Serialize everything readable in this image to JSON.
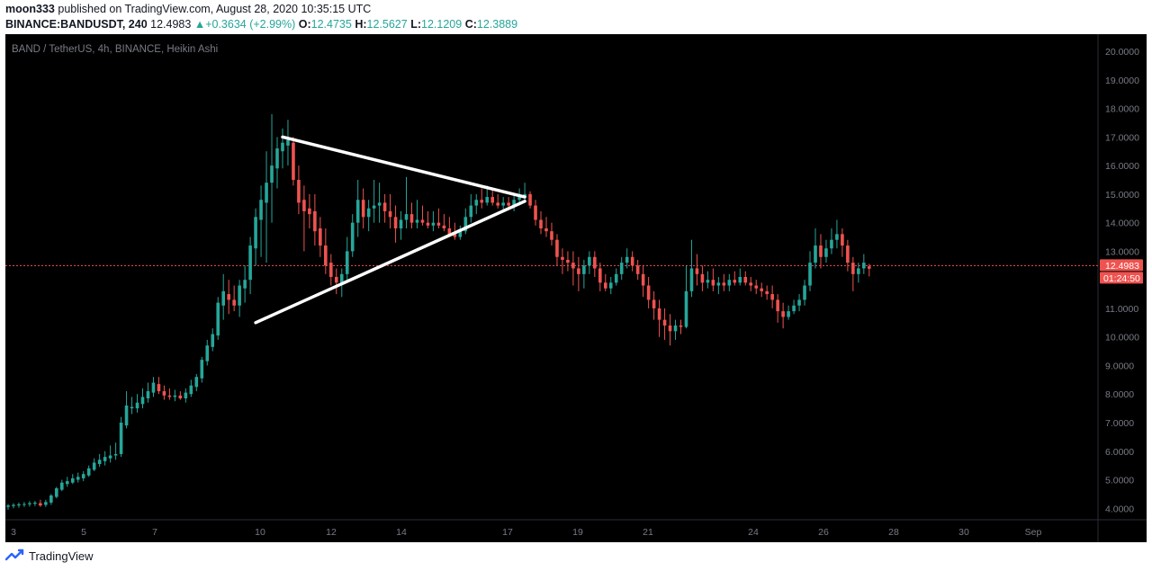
{
  "header": {
    "author": "moon333",
    "published_text": "published on TradingView.com, August 28, 2020 10:35:15 UTC",
    "symbol": "BINANCE:BANDUSDT, 240",
    "last_price": "12.4983",
    "change_arrow": "▲",
    "change": "+0.3634 (+2.99%)",
    "o_label": "O:",
    "o_value": "12.4735",
    "h_label": "H:",
    "h_value": "12.5627",
    "l_label": "L:",
    "l_value": "12.1209",
    "c_label": "C:",
    "c_value": "12.3889"
  },
  "footer": {
    "brand": "TradingView",
    "logo_icon": "tradingview-logo-icon"
  },
  "colors": {
    "background": "#000000",
    "up": "#26a69a",
    "down": "#ef5350",
    "price_line": "#ef5350",
    "pattern_lines": "#ffffff",
    "axis_text": "#787b86"
  },
  "chart_data": {
    "type": "candlestick",
    "chart_style": "Heikin Ashi",
    "title": "BAND / TetherUS, 4h, BINANCE, Heikin Ashi",
    "xlabel": "",
    "ylabel": "",
    "ylim": [
      3.6,
      20.6
    ],
    "grid": false,
    "y_ticks": [
      "4.0000",
      "5.0000",
      "6.0000",
      "7.0000",
      "8.0000",
      "9.0000",
      "10.0000",
      "11.0000",
      "12.0000",
      "13.0000",
      "14.0000",
      "15.0000",
      "16.0000",
      "17.0000",
      "18.0000",
      "19.0000",
      "20.0000"
    ],
    "x_ticks": [
      "3",
      "5",
      "7",
      "10",
      "12",
      "14",
      "17",
      "19",
      "21",
      "24",
      "26",
      "28",
      "30",
      "Sep"
    ],
    "last_price_label": "12.4983",
    "countdown_label": "01:24:50",
    "candles": [
      {
        "o": 4.05,
        "h": 4.15,
        "l": 3.95,
        "c": 4.1
      },
      {
        "o": 4.08,
        "h": 4.18,
        "l": 4.0,
        "c": 4.12
      },
      {
        "o": 4.1,
        "h": 4.2,
        "l": 4.02,
        "c": 4.14
      },
      {
        "o": 4.12,
        "h": 4.22,
        "l": 4.05,
        "c": 4.15
      },
      {
        "o": 4.14,
        "h": 4.25,
        "l": 4.06,
        "c": 4.18
      },
      {
        "o": 4.16,
        "h": 4.26,
        "l": 4.08,
        "c": 4.2
      },
      {
        "o": 4.18,
        "h": 4.3,
        "l": 4.05,
        "c": 4.1
      },
      {
        "o": 4.12,
        "h": 4.3,
        "l": 4.05,
        "c": 4.22
      },
      {
        "o": 4.2,
        "h": 4.5,
        "l": 4.12,
        "c": 4.45
      },
      {
        "o": 4.4,
        "h": 4.75,
        "l": 4.35,
        "c": 4.7
      },
      {
        "o": 4.65,
        "h": 5.0,
        "l": 4.6,
        "c": 4.9
      },
      {
        "o": 4.85,
        "h": 5.1,
        "l": 4.75,
        "c": 4.95
      },
      {
        "o": 4.9,
        "h": 5.2,
        "l": 4.85,
        "c": 5.05
      },
      {
        "o": 5.0,
        "h": 5.25,
        "l": 4.9,
        "c": 5.1
      },
      {
        "o": 5.05,
        "h": 5.3,
        "l": 4.95,
        "c": 5.2
      },
      {
        "o": 5.15,
        "h": 5.5,
        "l": 5.1,
        "c": 5.4
      },
      {
        "o": 5.35,
        "h": 5.75,
        "l": 5.3,
        "c": 5.6
      },
      {
        "o": 5.55,
        "h": 5.9,
        "l": 5.45,
        "c": 5.7
      },
      {
        "o": 5.65,
        "h": 6.0,
        "l": 5.5,
        "c": 5.8
      },
      {
        "o": 5.75,
        "h": 6.2,
        "l": 5.6,
        "c": 5.85
      },
      {
        "o": 5.85,
        "h": 6.3,
        "l": 5.7,
        "c": 5.9
      },
      {
        "o": 5.9,
        "h": 7.2,
        "l": 5.8,
        "c": 7.0
      },
      {
        "o": 6.9,
        "h": 8.1,
        "l": 6.8,
        "c": 7.6
      },
      {
        "o": 7.5,
        "h": 7.9,
        "l": 7.3,
        "c": 7.55
      },
      {
        "o": 7.5,
        "h": 8.0,
        "l": 7.35,
        "c": 7.7
      },
      {
        "o": 7.65,
        "h": 8.2,
        "l": 7.5,
        "c": 7.9
      },
      {
        "o": 7.85,
        "h": 8.4,
        "l": 7.7,
        "c": 8.1
      },
      {
        "o": 8.05,
        "h": 8.6,
        "l": 7.9,
        "c": 8.4
      },
      {
        "o": 8.35,
        "h": 8.6,
        "l": 8.0,
        "c": 8.1
      },
      {
        "o": 8.1,
        "h": 8.3,
        "l": 7.8,
        "c": 7.95
      },
      {
        "o": 7.95,
        "h": 8.2,
        "l": 7.8,
        "c": 7.9
      },
      {
        "o": 7.9,
        "h": 8.15,
        "l": 7.75,
        "c": 7.95
      },
      {
        "o": 7.95,
        "h": 8.1,
        "l": 7.8,
        "c": 7.85
      },
      {
        "o": 7.85,
        "h": 8.2,
        "l": 7.7,
        "c": 8.05
      },
      {
        "o": 8.0,
        "h": 8.5,
        "l": 7.9,
        "c": 8.3
      },
      {
        "o": 8.25,
        "h": 8.7,
        "l": 8.1,
        "c": 8.6
      },
      {
        "o": 8.55,
        "h": 9.3,
        "l": 8.4,
        "c": 9.2
      },
      {
        "o": 9.15,
        "h": 9.9,
        "l": 9.0,
        "c": 9.7
      },
      {
        "o": 9.65,
        "h": 10.3,
        "l": 9.5,
        "c": 10.1
      },
      {
        "o": 10.05,
        "h": 11.4,
        "l": 9.9,
        "c": 11.2
      },
      {
        "o": 11.1,
        "h": 12.2,
        "l": 10.6,
        "c": 11.6
      },
      {
        "o": 11.5,
        "h": 12.0,
        "l": 10.8,
        "c": 11.3
      },
      {
        "o": 11.3,
        "h": 11.8,
        "l": 10.9,
        "c": 11.1
      },
      {
        "o": 11.1,
        "h": 12.0,
        "l": 10.7,
        "c": 11.8
      },
      {
        "o": 11.7,
        "h": 12.5,
        "l": 11.2,
        "c": 12.0
      },
      {
        "o": 12.0,
        "h": 13.5,
        "l": 11.5,
        "c": 13.2
      },
      {
        "o": 13.1,
        "h": 14.5,
        "l": 12.5,
        "c": 14.2
      },
      {
        "o": 14.1,
        "h": 15.3,
        "l": 12.8,
        "c": 14.8
      },
      {
        "o": 14.7,
        "h": 16.5,
        "l": 12.6,
        "c": 15.4
      },
      {
        "o": 15.4,
        "h": 17.8,
        "l": 14.0,
        "c": 16.0
      },
      {
        "o": 15.9,
        "h": 17.0,
        "l": 15.2,
        "c": 16.6
      },
      {
        "o": 16.5,
        "h": 17.3,
        "l": 15.9,
        "c": 16.8
      },
      {
        "o": 16.7,
        "h": 17.6,
        "l": 16.0,
        "c": 16.9
      },
      {
        "o": 16.8,
        "h": 17.0,
        "l": 15.3,
        "c": 15.5
      },
      {
        "o": 15.5,
        "h": 16.0,
        "l": 14.3,
        "c": 14.7
      },
      {
        "o": 14.8,
        "h": 15.3,
        "l": 13.0,
        "c": 14.4
      },
      {
        "o": 14.5,
        "h": 15.0,
        "l": 13.8,
        "c": 14.3
      },
      {
        "o": 14.4,
        "h": 15.0,
        "l": 13.2,
        "c": 13.7
      },
      {
        "o": 13.8,
        "h": 14.2,
        "l": 12.8,
        "c": 13.2
      },
      {
        "o": 13.2,
        "h": 13.8,
        "l": 12.2,
        "c": 12.5
      },
      {
        "o": 12.6,
        "h": 12.9,
        "l": 11.8,
        "c": 12.1
      },
      {
        "o": 12.1,
        "h": 12.4,
        "l": 11.5,
        "c": 11.9
      },
      {
        "o": 11.9,
        "h": 12.4,
        "l": 11.4,
        "c": 12.2
      },
      {
        "o": 12.2,
        "h": 13.5,
        "l": 12.0,
        "c": 13.0
      },
      {
        "o": 13.0,
        "h": 14.3,
        "l": 12.8,
        "c": 14.0
      },
      {
        "o": 14.0,
        "h": 15.5,
        "l": 13.5,
        "c": 14.8
      },
      {
        "o": 14.8,
        "h": 15.2,
        "l": 13.8,
        "c": 14.2
      },
      {
        "o": 14.2,
        "h": 14.8,
        "l": 13.7,
        "c": 14.5
      },
      {
        "o": 14.5,
        "h": 15.5,
        "l": 14.0,
        "c": 14.6
      },
      {
        "o": 14.6,
        "h": 15.4,
        "l": 14.0,
        "c": 14.7
      },
      {
        "o": 14.7,
        "h": 15.0,
        "l": 14.0,
        "c": 14.4
      },
      {
        "o": 14.4,
        "h": 15.0,
        "l": 13.8,
        "c": 14.2
      },
      {
        "o": 14.2,
        "h": 14.6,
        "l": 13.3,
        "c": 13.8
      },
      {
        "o": 13.8,
        "h": 14.4,
        "l": 13.4,
        "c": 14.1
      },
      {
        "o": 14.1,
        "h": 15.6,
        "l": 13.8,
        "c": 14.3
      },
      {
        "o": 14.3,
        "h": 14.7,
        "l": 13.8,
        "c": 14.0
      },
      {
        "o": 14.0,
        "h": 14.8,
        "l": 13.8,
        "c": 14.1
      },
      {
        "o": 14.1,
        "h": 14.6,
        "l": 13.9,
        "c": 14.0
      },
      {
        "o": 14.0,
        "h": 14.4,
        "l": 13.8,
        "c": 13.9
      },
      {
        "o": 13.9,
        "h": 14.4,
        "l": 13.7,
        "c": 14.0
      },
      {
        "o": 14.0,
        "h": 14.5,
        "l": 13.8,
        "c": 13.9
      },
      {
        "o": 13.9,
        "h": 14.3,
        "l": 13.7,
        "c": 13.8
      },
      {
        "o": 13.8,
        "h": 14.2,
        "l": 13.5,
        "c": 13.6
      },
      {
        "o": 13.6,
        "h": 14.0,
        "l": 13.4,
        "c": 13.5
      },
      {
        "o": 13.5,
        "h": 13.9,
        "l": 13.4,
        "c": 13.7
      },
      {
        "o": 13.7,
        "h": 14.5,
        "l": 13.6,
        "c": 14.2
      },
      {
        "o": 14.2,
        "h": 15.0,
        "l": 14.0,
        "c": 14.6
      },
      {
        "o": 14.6,
        "h": 15.0,
        "l": 14.3,
        "c": 14.8
      },
      {
        "o": 14.8,
        "h": 15.2,
        "l": 14.5,
        "c": 14.7
      },
      {
        "o": 14.7,
        "h": 15.3,
        "l": 14.6,
        "c": 14.9
      },
      {
        "o": 14.9,
        "h": 15.2,
        "l": 14.6,
        "c": 14.7
      },
      {
        "o": 14.7,
        "h": 15.0,
        "l": 14.5,
        "c": 14.6
      },
      {
        "o": 14.6,
        "h": 14.9,
        "l": 14.4,
        "c": 14.7
      },
      {
        "o": 14.7,
        "h": 14.9,
        "l": 14.5,
        "c": 14.6
      },
      {
        "o": 14.6,
        "h": 15.0,
        "l": 14.4,
        "c": 14.8
      },
      {
        "o": 14.8,
        "h": 15.2,
        "l": 14.6,
        "c": 14.9
      },
      {
        "o": 14.9,
        "h": 15.4,
        "l": 14.7,
        "c": 15.0
      },
      {
        "o": 15.0,
        "h": 15.1,
        "l": 14.5,
        "c": 14.6
      },
      {
        "o": 14.6,
        "h": 14.8,
        "l": 13.9,
        "c": 14.1
      },
      {
        "o": 14.1,
        "h": 14.4,
        "l": 13.6,
        "c": 13.8
      },
      {
        "o": 13.8,
        "h": 14.2,
        "l": 13.5,
        "c": 13.7
      },
      {
        "o": 13.7,
        "h": 14.0,
        "l": 13.2,
        "c": 13.4
      },
      {
        "o": 13.4,
        "h": 13.6,
        "l": 12.5,
        "c": 12.8
      },
      {
        "o": 12.8,
        "h": 13.1,
        "l": 12.2,
        "c": 12.7
      },
      {
        "o": 12.7,
        "h": 13.0,
        "l": 12.3,
        "c": 12.6
      },
      {
        "o": 12.6,
        "h": 13.0,
        "l": 11.8,
        "c": 12.4
      },
      {
        "o": 12.4,
        "h": 12.8,
        "l": 11.6,
        "c": 12.2
      },
      {
        "o": 12.2,
        "h": 12.7,
        "l": 11.7,
        "c": 12.5
      },
      {
        "o": 12.5,
        "h": 13.0,
        "l": 12.2,
        "c": 12.8
      },
      {
        "o": 12.8,
        "h": 13.0,
        "l": 12.1,
        "c": 12.4
      },
      {
        "o": 12.4,
        "h": 12.6,
        "l": 11.6,
        "c": 11.9
      },
      {
        "o": 11.9,
        "h": 12.2,
        "l": 11.6,
        "c": 11.7
      },
      {
        "o": 11.7,
        "h": 12.1,
        "l": 11.5,
        "c": 11.9
      },
      {
        "o": 11.9,
        "h": 12.4,
        "l": 11.8,
        "c": 12.2
      },
      {
        "o": 12.2,
        "h": 12.8,
        "l": 12.0,
        "c": 12.6
      },
      {
        "o": 12.6,
        "h": 13.1,
        "l": 12.4,
        "c": 12.8
      },
      {
        "o": 12.8,
        "h": 13.0,
        "l": 12.3,
        "c": 12.5
      },
      {
        "o": 12.5,
        "h": 12.7,
        "l": 12.0,
        "c": 12.2
      },
      {
        "o": 12.2,
        "h": 12.5,
        "l": 11.4,
        "c": 11.8
      },
      {
        "o": 11.8,
        "h": 12.1,
        "l": 11.0,
        "c": 11.3
      },
      {
        "o": 11.3,
        "h": 11.6,
        "l": 10.6,
        "c": 11.0
      },
      {
        "o": 11.0,
        "h": 11.3,
        "l": 10.0,
        "c": 10.6
      },
      {
        "o": 10.6,
        "h": 11.0,
        "l": 9.9,
        "c": 10.4
      },
      {
        "o": 10.4,
        "h": 10.8,
        "l": 9.7,
        "c": 10.2
      },
      {
        "o": 10.2,
        "h": 10.6,
        "l": 9.9,
        "c": 10.4
      },
      {
        "o": 10.4,
        "h": 10.6,
        "l": 10.1,
        "c": 10.35
      },
      {
        "o": 10.35,
        "h": 12.5,
        "l": 10.3,
        "c": 11.6
      },
      {
        "o": 11.6,
        "h": 13.4,
        "l": 11.4,
        "c": 12.4
      },
      {
        "o": 12.4,
        "h": 12.9,
        "l": 11.8,
        "c": 12.2
      },
      {
        "o": 12.2,
        "h": 12.5,
        "l": 11.6,
        "c": 11.9
      },
      {
        "o": 11.9,
        "h": 12.3,
        "l": 11.7,
        "c": 12.0
      },
      {
        "o": 12.0,
        "h": 12.4,
        "l": 11.6,
        "c": 11.8
      },
      {
        "o": 11.8,
        "h": 12.1,
        "l": 11.5,
        "c": 11.9
      },
      {
        "o": 11.9,
        "h": 12.2,
        "l": 11.6,
        "c": 11.8
      },
      {
        "o": 11.8,
        "h": 12.2,
        "l": 11.6,
        "c": 12.0
      },
      {
        "o": 12.0,
        "h": 12.3,
        "l": 11.8,
        "c": 11.9
      },
      {
        "o": 11.9,
        "h": 12.4,
        "l": 11.8,
        "c": 12.1
      },
      {
        "o": 12.1,
        "h": 12.3,
        "l": 11.8,
        "c": 11.9
      },
      {
        "o": 11.9,
        "h": 12.1,
        "l": 11.6,
        "c": 11.8
      },
      {
        "o": 11.8,
        "h": 12.0,
        "l": 11.5,
        "c": 11.7
      },
      {
        "o": 11.7,
        "h": 11.9,
        "l": 11.4,
        "c": 11.6
      },
      {
        "o": 11.6,
        "h": 11.8,
        "l": 11.3,
        "c": 11.5
      },
      {
        "o": 11.5,
        "h": 11.8,
        "l": 11.0,
        "c": 11.3
      },
      {
        "o": 11.3,
        "h": 11.5,
        "l": 10.5,
        "c": 10.9
      },
      {
        "o": 10.9,
        "h": 11.2,
        "l": 10.3,
        "c": 10.7
      },
      {
        "o": 10.7,
        "h": 11.1,
        "l": 10.6,
        "c": 10.9
      },
      {
        "o": 10.9,
        "h": 11.3,
        "l": 10.8,
        "c": 11.1
      },
      {
        "o": 11.1,
        "h": 11.5,
        "l": 10.9,
        "c": 11.3
      },
      {
        "o": 11.3,
        "h": 12.0,
        "l": 11.1,
        "c": 11.8
      },
      {
        "o": 11.8,
        "h": 13.0,
        "l": 11.6,
        "c": 12.6
      },
      {
        "o": 12.6,
        "h": 13.8,
        "l": 12.4,
        "c": 13.2
      },
      {
        "o": 13.2,
        "h": 13.6,
        "l": 12.4,
        "c": 12.8
      },
      {
        "o": 12.8,
        "h": 13.4,
        "l": 12.6,
        "c": 13.1
      },
      {
        "o": 13.1,
        "h": 13.8,
        "l": 12.9,
        "c": 13.4
      },
      {
        "o": 13.4,
        "h": 14.1,
        "l": 13.1,
        "c": 13.6
      },
      {
        "o": 13.6,
        "h": 13.8,
        "l": 12.8,
        "c": 13.2
      },
      {
        "o": 13.2,
        "h": 13.4,
        "l": 12.3,
        "c": 12.6
      },
      {
        "o": 12.6,
        "h": 12.8,
        "l": 11.6,
        "c": 12.2
      },
      {
        "o": 12.2,
        "h": 12.6,
        "l": 11.9,
        "c": 12.4
      },
      {
        "o": 12.4,
        "h": 12.9,
        "l": 12.2,
        "c": 12.6
      },
      {
        "o": 12.47,
        "h": 12.56,
        "l": 12.12,
        "c": 12.39
      }
    ],
    "drawings": [
      {
        "type": "trendline",
        "name": "upper-triangle-line",
        "from": {
          "candle": 51,
          "price": 17.0
        },
        "to": {
          "candle": 96,
          "price": 14.9
        }
      },
      {
        "type": "trendline",
        "name": "lower-triangle-line",
        "from": {
          "candle": 46,
          "price": 10.5
        },
        "to": {
          "candle": 96,
          "price": 14.75
        }
      }
    ]
  }
}
